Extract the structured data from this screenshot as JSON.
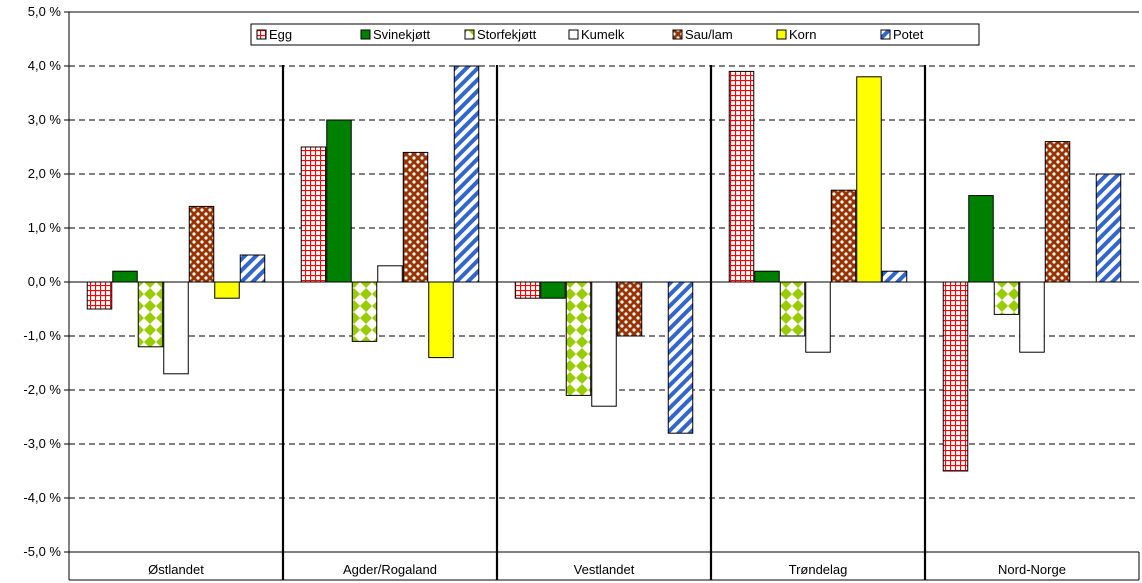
{
  "chart_data": {
    "type": "bar",
    "categories": [
      "Østlandet",
      "Agder/Rogaland",
      "Vestlandet",
      "Trøndelag",
      "Nord-Norge"
    ],
    "series": [
      {
        "name": "Egg",
        "values": [
          -0.5,
          2.5,
          -0.3,
          3.9,
          -3.5
        ],
        "pattern": "grid",
        "color": "#ff0000"
      },
      {
        "name": "Svinekjøtt",
        "values": [
          0.2,
          3.0,
          -0.3,
          0.2,
          1.6
        ],
        "pattern": "solid",
        "color": "#008000"
      },
      {
        "name": "Storfekjøtt",
        "values": [
          -1.2,
          -1.1,
          -2.1,
          -1.0,
          -0.6
        ],
        "pattern": "diamond",
        "color": "#99cc00"
      },
      {
        "name": "Kumelk",
        "values": [
          -1.7,
          0.3,
          -2.3,
          -1.3,
          -1.3
        ],
        "pattern": "white",
        "color": "#ffffff"
      },
      {
        "name": "Sau/lam",
        "values": [
          1.4,
          2.4,
          -1.0,
          1.7,
          2.6
        ],
        "pattern": "dots",
        "color": "#993300"
      },
      {
        "name": "Korn",
        "values": [
          -0.3,
          -1.4,
          null,
          3.8,
          null
        ],
        "pattern": "solid",
        "color": "#ffff00"
      },
      {
        "name": "Potet",
        "values": [
          0.5,
          4.0,
          -2.8,
          0.2,
          2.0
        ],
        "pattern": "stripes",
        "color": "#3366cc"
      }
    ],
    "ylim": [
      -5,
      5
    ],
    "yticks": [
      "5,0 %",
      "4,0 %",
      "3,0 %",
      "2,0 %",
      "1,0 %",
      "0,0 %",
      "-1,0 %",
      "-2,0 %",
      "-3,0 %",
      "-4,0 %",
      "-5,0 %"
    ],
    "grid": true,
    "legend_position": "top-center",
    "title": "",
    "xlabel": "",
    "ylabel": ""
  }
}
